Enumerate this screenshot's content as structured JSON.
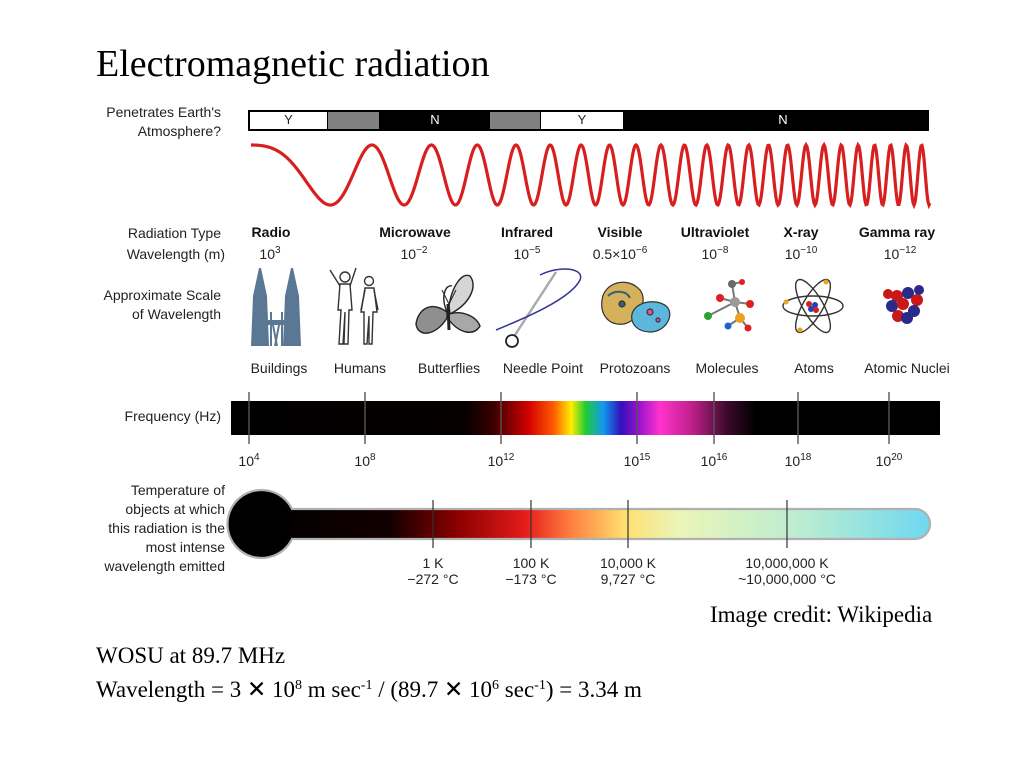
{
  "title": "Electromagnetic radiation",
  "atmosphere": {
    "label_line1": "Penetrates Earth's",
    "label_line2": "Atmosphere?",
    "segments": [
      "Y",
      "N",
      "Y",
      "N"
    ]
  },
  "row_labels": {
    "radiation_type": "Radiation Type",
    "wavelength": "Wavelength (m)",
    "scale_line1": "Approximate Scale",
    "scale_line2": "of Wavelength",
    "frequency": "Frequency (Hz)",
    "temperature_lines": [
      "Temperature of",
      "objects at which",
      "this radiation is the",
      "most intense",
      "wavelength emitted"
    ]
  },
  "radiation_types": [
    {
      "name": "Radio",
      "wl_base": "10",
      "wl_exp": "3"
    },
    {
      "name": "Microwave",
      "wl_base": "10",
      "wl_exp": "−2"
    },
    {
      "name": "Infrared",
      "wl_base": "10",
      "wl_exp": "−5"
    },
    {
      "name": "Visible",
      "wl_base": "0.5×10",
      "wl_exp": "−6"
    },
    {
      "name": "Ultraviolet",
      "wl_base": "10",
      "wl_exp": "−8"
    },
    {
      "name": "X-ray",
      "wl_base": "10",
      "wl_exp": "−10"
    },
    {
      "name": "Gamma ray",
      "wl_base": "10",
      "wl_exp": "−12"
    }
  ],
  "scale_labels": [
    "Buildings",
    "Humans",
    "Butterflies",
    "Needle Point",
    "Protozoans",
    "Molecules",
    "Atoms",
    "Atomic Nuclei"
  ],
  "frequency_ticks": [
    {
      "base": "10",
      "exp": "4"
    },
    {
      "base": "10",
      "exp": "8"
    },
    {
      "base": "10",
      "exp": "12"
    },
    {
      "base": "10",
      "exp": "15"
    },
    {
      "base": "10",
      "exp": "16"
    },
    {
      "base": "10",
      "exp": "18"
    },
    {
      "base": "10",
      "exp": "20"
    }
  ],
  "temperature_ticks": [
    {
      "k": "1 K",
      "c": "−272 °C"
    },
    {
      "k": "100 K",
      "c": "−173 °C"
    },
    {
      "k": "10,000 K",
      "c": "9,727 °C"
    },
    {
      "k": "10,000,000 K",
      "c": "~10,000,000 °C"
    }
  ],
  "image_credit": "Image credit: Wikipedia",
  "bottom_text": {
    "line1": "WOSU at 89.7 MHz",
    "formula": [
      "Wavelength = 3 ✕ 10",
      "8",
      " m sec",
      "-1",
      " / (89.7 ✕ 10",
      "6",
      " sec",
      "-1",
      ") = 3.34 m"
    ]
  },
  "colors": {
    "wave": "#d81f1f",
    "atmosphere_partial": "#808080"
  }
}
